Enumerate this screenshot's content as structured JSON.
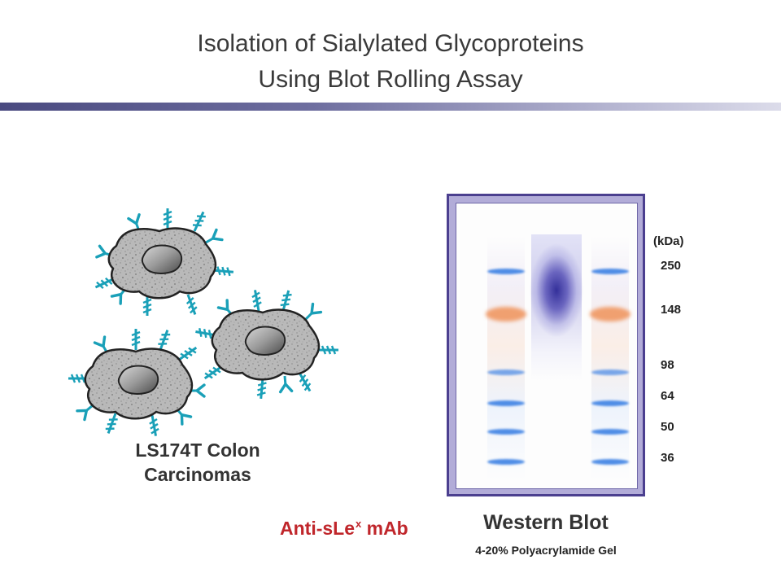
{
  "slide": {
    "title_line1": "Isolation of Sialylated Glycoproteins",
    "title_line2": "Using Blot Rolling Assay"
  },
  "cells": {
    "caption_line1": "LS174T Colon",
    "caption_line2": "Carcinomas",
    "antibody_label": "Anti-sLe",
    "antibody_superscript": "x",
    "antibody_suffix": " mAb"
  },
  "blot": {
    "unit_label": "(kDa)",
    "markers": [
      "250",
      "148",
      "98",
      "64",
      "50",
      "36"
    ],
    "title": "Western Blot",
    "subtitle": "4-20% Polyacrylamide Gel"
  },
  "colors": {
    "title_text": "#3a3a3a",
    "antibody_text": "#c0262b",
    "blot_frame": "#4b3f8f",
    "marker_band_blue": "#4f8de6",
    "marker_band_orange": "#f0a070",
    "sample_smear": "#34309a",
    "glycan_chain": "#1aa0b8"
  }
}
